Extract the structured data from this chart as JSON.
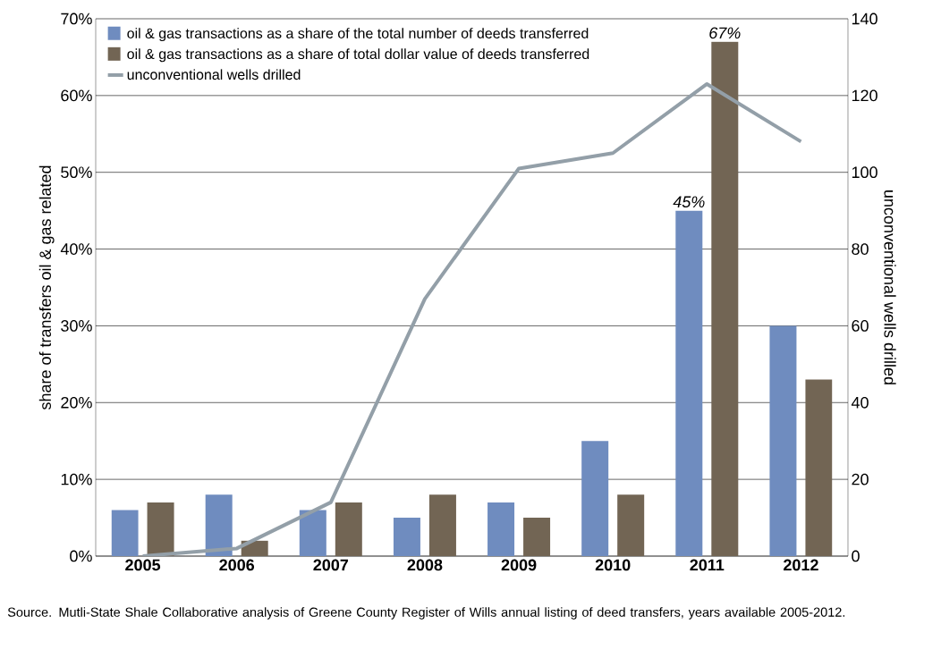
{
  "chart_data": {
    "type": "bar",
    "categories": [
      "2005",
      "2006",
      "2007",
      "2008",
      "2009",
      "2010",
      "2011",
      "2012"
    ],
    "series": [
      {
        "name": "oil & gas transactions as a share of the total number of deeds transferred",
        "color": "#6f8cbf",
        "values": [
          6,
          8,
          6,
          5,
          7,
          15,
          45,
          30
        ],
        "value_labels": [
          null,
          null,
          null,
          null,
          null,
          null,
          "45%",
          null
        ]
      },
      {
        "name": "oil & gas transactions as a share of total dollar value of deeds transferred",
        "color": "#726554",
        "values": [
          7,
          2,
          7,
          8,
          5,
          8,
          67,
          23
        ],
        "value_labels": [
          null,
          null,
          null,
          null,
          null,
          null,
          "67%",
          null
        ]
      },
      {
        "name": "unconventional wells drilled",
        "type": "line",
        "axis": "y2",
        "color": "#939fa8",
        "values": [
          0,
          2,
          14,
          67,
          101,
          105,
          123,
          108
        ]
      }
    ],
    "ylabel": "share of transfers oil & gas related",
    "y2label": "unconventional wells drilled",
    "ylim": [
      0,
      70
    ],
    "yticks": [
      {
        "value": 0,
        "label": "0%"
      },
      {
        "value": 10,
        "label": "10%"
      },
      {
        "value": 20,
        "label": "20%"
      },
      {
        "value": 30,
        "label": "30%"
      },
      {
        "value": 40,
        "label": "40%"
      },
      {
        "value": 50,
        "label": "50%"
      },
      {
        "value": 60,
        "label": "60%"
      },
      {
        "value": 70,
        "label": "70%"
      }
    ],
    "y2lim": [
      0,
      140
    ],
    "y2ticks": [
      0,
      20,
      40,
      60,
      80,
      100,
      120,
      140
    ],
    "grid": "y",
    "legend": "top left",
    "annotations": [
      "Source. Mutli-State Shale Collaborative analysis of Greene County Register of Wills annual listing of deed transfers, years available 2005-2012."
    ]
  }
}
